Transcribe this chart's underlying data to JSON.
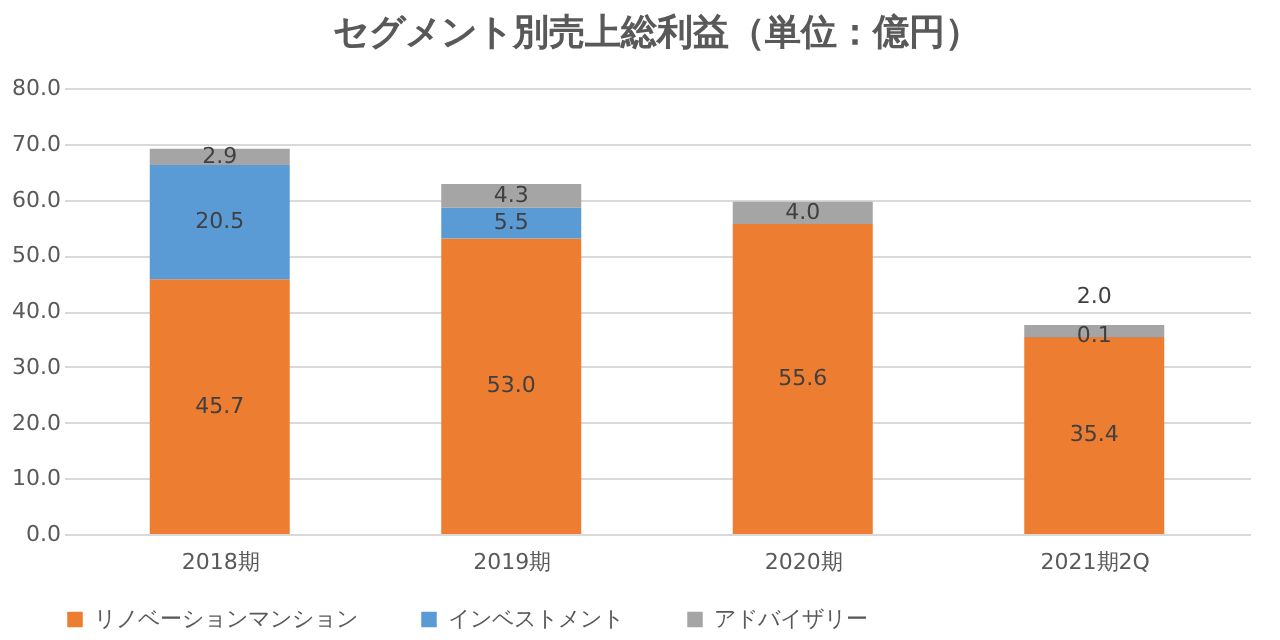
{
  "chart_data": {
    "type": "bar",
    "title": "セグメント別売上総利益（単位：億円）",
    "categories": [
      "2018期",
      "2019期",
      "2020期",
      "2021期2Q"
    ],
    "series": [
      {
        "name": "リノベーションマンション",
        "color": "#ed7d31",
        "values": [
          45.7,
          53.0,
          55.6,
          35.4
        ],
        "value_labels": [
          "45.7",
          "53.0",
          "55.6",
          "35.4"
        ]
      },
      {
        "name": "インベストメント",
        "color": "#5b9bd5",
        "values": [
          20.5,
          5.5,
          null,
          0.1
        ],
        "value_labels": [
          "20.5",
          "5.5",
          null,
          "0.1"
        ]
      },
      {
        "name": "アドバイザリー",
        "color": "#a5a5a5",
        "values": [
          2.9,
          4.3,
          4.0,
          2.0
        ],
        "value_labels": [
          "2.9",
          "4.3",
          "4.0",
          "2.0"
        ]
      }
    ],
    "stacked": true,
    "ylim": [
      0,
      80
    ],
    "yticks": [
      {
        "value": 0,
        "label": "0.0"
      },
      {
        "value": 10,
        "label": "10.0"
      },
      {
        "value": 20,
        "label": "20.0"
      },
      {
        "value": 30,
        "label": "30.0"
      },
      {
        "value": 40,
        "label": "40.0"
      },
      {
        "value": 50,
        "label": "50.0"
      },
      {
        "value": 60,
        "label": "60.0"
      },
      {
        "value": 70,
        "label": "70.0"
      },
      {
        "value": 80,
        "label": "80.0"
      }
    ],
    "grid": "y",
    "legend": "bottom"
  }
}
